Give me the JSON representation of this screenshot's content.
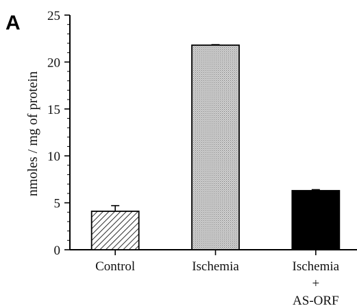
{
  "panel_label": "A",
  "chart_data": {
    "type": "bar",
    "categories": [
      [
        "Control"
      ],
      [
        "Ischemia"
      ],
      [
        "Ischemia",
        "+",
        "AS-ORF"
      ]
    ],
    "values": [
      4.1,
      21.8,
      6.3
    ],
    "errors": [
      0.6,
      0.05,
      0.1
    ],
    "bar_styles": [
      "hatched",
      "stippled",
      "solid-black"
    ],
    "ylabel": "nmoles / mg of protein",
    "xlabel": "",
    "ylim": [
      0,
      25
    ],
    "yticks": [
      0,
      5,
      10,
      15,
      20,
      25
    ],
    "grid": false
  }
}
